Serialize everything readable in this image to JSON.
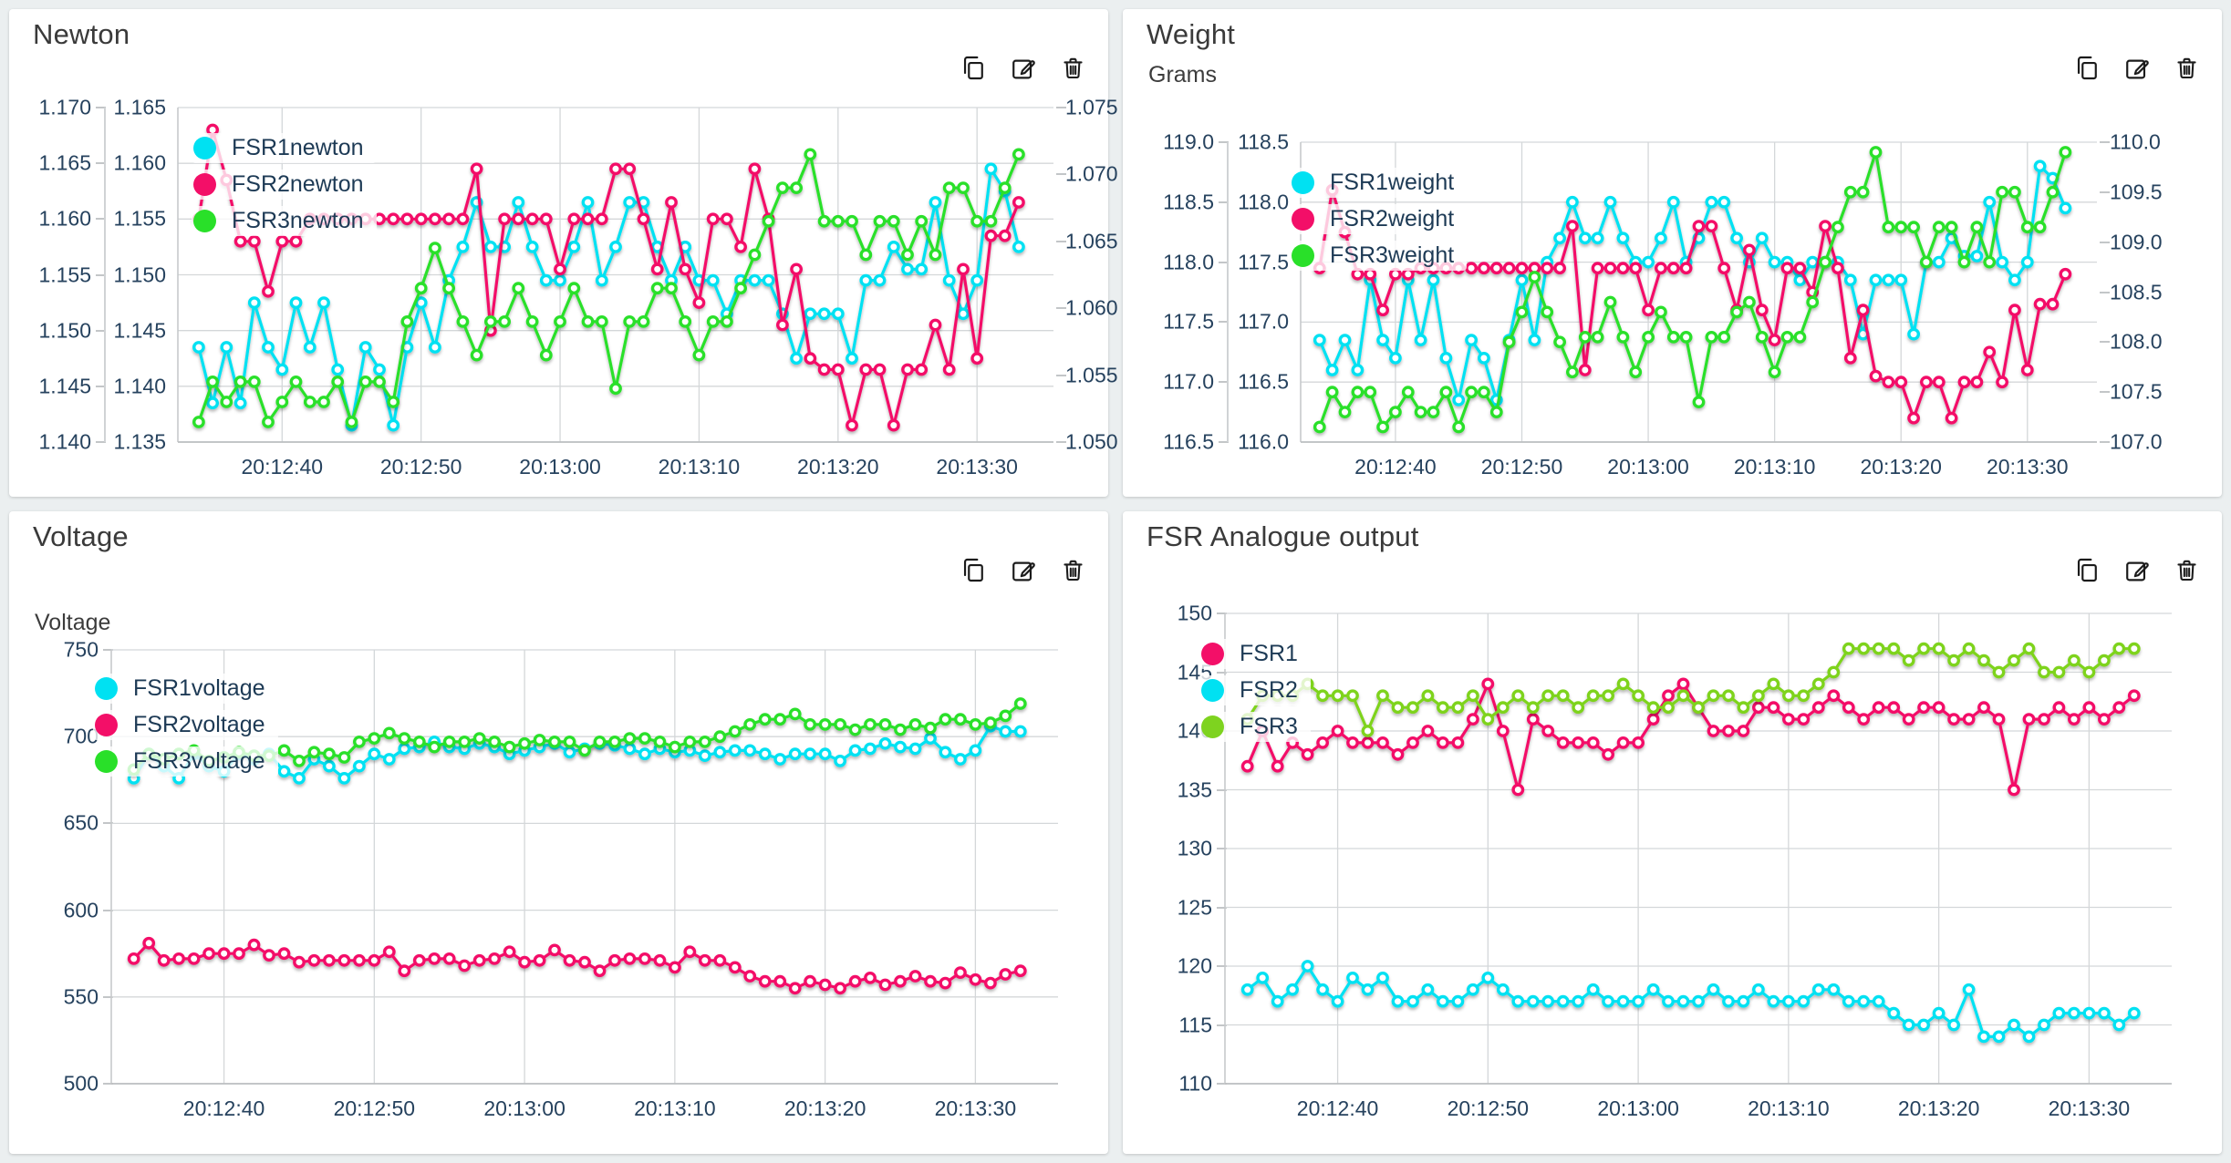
{
  "page": {
    "background": "#ebeff0"
  },
  "colors": {
    "cyan": "#00e1f2",
    "pink": "#f30f68",
    "green": "#29e029",
    "lime": "#7ed31f",
    "grid": "#d4d7d9",
    "tick_text": "#26425e",
    "title_text": "#3a3a3a"
  },
  "icon_names": {
    "copy": "copy-icon",
    "edit": "edit-icon",
    "delete": "trash-icon"
  },
  "chart_data": [
    {
      "id": "newton",
      "type": "line",
      "title": "Newton",
      "y_axis_label": null,
      "legend_position": "top-left",
      "start_time": "20:12:34",
      "interval_s": 1,
      "x_ticks": [
        "20:12:40",
        "20:12:50",
        "20:13:00",
        "20:13:10",
        "20:13:20",
        "20:13:30"
      ],
      "axes": [
        {
          "position": "left-outer",
          "min": 1.14,
          "max": 1.17,
          "ticks": [
            "1.170",
            "1.165",
            "1.160",
            "1.155",
            "1.150",
            "1.145",
            "1.140"
          ]
        },
        {
          "position": "left-inner",
          "min": 1.135,
          "max": 1.165,
          "grid": true,
          "ticks": [
            "1.165",
            "1.160",
            "1.155",
            "1.150",
            "1.145",
            "1.140",
            "1.135"
          ]
        },
        {
          "position": "right",
          "min": 1.05,
          "max": 1.075,
          "ticks": [
            "1.075",
            "1.070",
            "1.065",
            "1.060",
            "1.055",
            "1.050"
          ]
        }
      ],
      "series": [
        {
          "name": "FSR1newton",
          "color": "#00e1f2",
          "axis": 1,
          "values": [
            1.1435,
            1.1385,
            1.1435,
            1.1385,
            1.1475,
            1.1435,
            1.1415,
            1.1475,
            1.1435,
            1.1475,
            1.1415,
            1.1365,
            1.1435,
            1.1415,
            1.1365,
            1.1435,
            1.1475,
            1.1435,
            1.1495,
            1.1525,
            1.1565,
            1.1525,
            1.1525,
            1.1565,
            1.1525,
            1.1495,
            1.1495,
            1.1525,
            1.1565,
            1.1495,
            1.1525,
            1.1565,
            1.1565,
            1.1525,
            1.1495,
            1.1525,
            1.1495,
            1.1495,
            1.1465,
            1.1495,
            1.1495,
            1.1495,
            1.1465,
            1.1425,
            1.1465,
            1.1465,
            1.1465,
            1.1425,
            1.1495,
            1.1495,
            1.1525,
            1.1505,
            1.1505,
            1.1565,
            1.1495,
            1.1465,
            1.1495,
            1.1595,
            1.1575,
            1.1525
          ]
        },
        {
          "name": "FSR2newton",
          "color": "#f30f68",
          "axis": 0,
          "values": [
            1.16,
            1.168,
            1.1635,
            1.158,
            1.158,
            1.1535,
            1.158,
            1.158,
            1.16,
            1.16,
            1.16,
            1.16,
            1.16,
            1.16,
            1.16,
            1.16,
            1.16,
            1.16,
            1.16,
            1.16,
            1.1645,
            1.15,
            1.16,
            1.16,
            1.16,
            1.16,
            1.1555,
            1.16,
            1.16,
            1.16,
            1.1645,
            1.1645,
            1.16,
            1.1555,
            1.1615,
            1.1555,
            1.1525,
            1.16,
            1.16,
            1.1575,
            1.1645,
            1.16,
            1.1505,
            1.1555,
            1.1475,
            1.1465,
            1.1465,
            1.1415,
            1.1465,
            1.1465,
            1.1415,
            1.1465,
            1.1465,
            1.1505,
            1.1465,
            1.1555,
            1.1475,
            1.1585,
            1.1585,
            1.1615
          ]
        },
        {
          "name": "FSR3newton",
          "color": "#29e029",
          "axis": 2,
          "values": [
            1.0515,
            1.0545,
            1.053,
            1.0545,
            1.0545,
            1.0515,
            1.053,
            1.0545,
            1.053,
            1.053,
            1.0545,
            1.0515,
            1.0545,
            1.0545,
            1.053,
            1.059,
            1.0615,
            1.0645,
            1.0615,
            1.059,
            1.0565,
            1.059,
            1.059,
            1.0615,
            1.059,
            1.0565,
            1.059,
            1.0615,
            1.059,
            1.059,
            1.054,
            1.059,
            1.059,
            1.0615,
            1.0615,
            1.059,
            1.0565,
            1.059,
            1.059,
            1.0615,
            1.064,
            1.0665,
            1.069,
            1.069,
            1.0715,
            1.0665,
            1.0665,
            1.0665,
            1.064,
            1.0665,
            1.0665,
            1.064,
            1.0665,
            1.064,
            1.069,
            1.069,
            1.0665,
            1.0665,
            1.069,
            1.0715
          ]
        }
      ]
    },
    {
      "id": "weight",
      "type": "line",
      "title": "Weight",
      "y_axis_label": "Grams",
      "legend_position": "top-left",
      "start_time": "20:12:34",
      "interval_s": 1,
      "x_ticks": [
        "20:12:40",
        "20:12:50",
        "20:13:00",
        "20:13:10",
        "20:13:20",
        "20:13:30"
      ],
      "axes": [
        {
          "position": "left-outer",
          "min": 116.5,
          "max": 119.0,
          "ticks": [
            "119.0",
            "118.5",
            "118.0",
            "117.5",
            "117.0",
            "116.5"
          ]
        },
        {
          "position": "left-inner",
          "min": 116.0,
          "max": 118.5,
          "grid": true,
          "ticks": [
            "118.5",
            "118.0",
            "117.5",
            "117.0",
            "116.5",
            "116.0"
          ]
        },
        {
          "position": "right",
          "min": 107.0,
          "max": 110.0,
          "ticks": [
            "110.0",
            "109.5",
            "109.0",
            "108.5",
            "108.0",
            "107.5",
            "107.0"
          ]
        }
      ],
      "series": [
        {
          "name": "FSR1weight",
          "color": "#00e1f2",
          "axis": 1,
          "values": [
            116.85,
            116.6,
            116.85,
            116.6,
            117.35,
            116.85,
            116.7,
            117.35,
            116.85,
            117.35,
            116.7,
            116.35,
            116.85,
            116.7,
            116.35,
            116.85,
            117.35,
            116.85,
            117.5,
            117.7,
            118.0,
            117.7,
            117.7,
            118.0,
            117.7,
            117.5,
            117.5,
            117.7,
            118.0,
            117.5,
            117.7,
            118.0,
            118.0,
            117.7,
            117.5,
            117.7,
            117.5,
            117.5,
            117.35,
            117.5,
            117.5,
            117.5,
            117.35,
            116.9,
            117.35,
            117.35,
            117.35,
            116.9,
            117.5,
            117.5,
            117.7,
            117.55,
            117.55,
            118.0,
            117.5,
            117.35,
            117.5,
            118.3,
            118.2,
            117.95
          ]
        },
        {
          "name": "FSR2weight",
          "color": "#f30f68",
          "axis": 0,
          "values": [
            117.95,
            118.6,
            118.25,
            117.9,
            117.9,
            117.6,
            117.9,
            117.9,
            117.95,
            117.95,
            117.95,
            117.95,
            117.95,
            117.95,
            117.95,
            117.95,
            117.95,
            117.95,
            117.95,
            117.95,
            118.3,
            117.1,
            117.95,
            117.95,
            117.95,
            117.95,
            117.6,
            117.95,
            117.95,
            117.95,
            118.3,
            118.3,
            117.95,
            117.6,
            118.1,
            117.6,
            117.35,
            117.95,
            117.95,
            117.75,
            118.3,
            117.95,
            117.2,
            117.6,
            117.05,
            117.0,
            117.0,
            116.7,
            117.0,
            117.0,
            116.7,
            117.0,
            117.0,
            117.25,
            117.0,
            117.6,
            117.1,
            117.65,
            117.65,
            117.9
          ]
        },
        {
          "name": "FSR3weight",
          "color": "#29e029",
          "axis": 2,
          "values": [
            107.15,
            107.5,
            107.3,
            107.5,
            107.5,
            107.15,
            107.3,
            107.5,
            107.3,
            107.3,
            107.5,
            107.15,
            107.5,
            107.5,
            107.3,
            108.0,
            108.3,
            108.65,
            108.3,
            108.0,
            107.7,
            108.05,
            108.05,
            108.4,
            108.05,
            107.7,
            108.05,
            108.3,
            108.05,
            108.05,
            107.4,
            108.05,
            108.05,
            108.3,
            108.4,
            108.05,
            107.7,
            108.05,
            108.05,
            108.4,
            108.8,
            109.15,
            109.5,
            109.5,
            109.9,
            109.15,
            109.15,
            109.15,
            108.8,
            109.15,
            109.15,
            108.8,
            109.15,
            108.8,
            109.5,
            109.5,
            109.15,
            109.15,
            109.5,
            109.9
          ]
        }
      ]
    },
    {
      "id": "voltage",
      "type": "line",
      "title": "Voltage",
      "y_axis_label": "Voltage",
      "legend_position": "top-left",
      "start_time": "20:12:34",
      "interval_s": 1,
      "x_ticks": [
        "20:12:40",
        "20:12:50",
        "20:13:00",
        "20:13:10",
        "20:13:20",
        "20:13:30"
      ],
      "axes": [
        {
          "position": "left",
          "min": 500,
          "max": 750,
          "grid": true,
          "ticks": [
            "750",
            "700",
            "650",
            "600",
            "550",
            "500"
          ]
        }
      ],
      "series": [
        {
          "name": "FSR1voltage",
          "color": "#00e1f2",
          "axis": 0,
          "values": [
            676,
            690,
            683,
            676,
            690,
            683,
            680,
            690,
            687,
            690,
            680,
            676,
            687,
            683,
            676,
            683,
            690,
            687,
            693,
            694,
            697,
            694,
            693,
            696,
            694,
            690,
            692,
            694,
            696,
            691,
            693,
            696,
            695,
            693,
            690,
            693,
            691,
            692,
            689,
            691,
            692,
            692,
            690,
            687,
            690,
            690,
            690,
            686,
            692,
            693,
            696,
            694,
            693,
            699,
            691,
            687,
            692,
            706,
            703,
            703
          ]
        },
        {
          "name": "FSR2voltage",
          "color": "#f30f68",
          "axis": 0,
          "values": [
            572,
            581,
            571,
            572,
            572,
            575,
            575,
            575,
            580,
            574,
            575,
            570,
            571,
            571,
            571,
            571,
            571,
            576,
            565,
            571,
            572,
            572,
            568,
            571,
            572,
            576,
            570,
            571,
            577,
            571,
            570,
            565,
            571,
            572,
            572,
            571,
            567,
            576,
            571,
            571,
            567,
            562,
            559,
            559,
            555,
            559,
            557,
            555,
            559,
            561,
            557,
            559,
            562,
            559,
            558,
            564,
            560,
            558,
            563,
            565
          ]
        },
        {
          "name": "FSR3voltage",
          "color": "#29e029",
          "axis": 0,
          "values": [
            681,
            690,
            687,
            690,
            692,
            686,
            688,
            691,
            689,
            689,
            692,
            686,
            691,
            690,
            688,
            697,
            699,
            702,
            699,
            697,
            694,
            697,
            697,
            699,
            697,
            694,
            696,
            698,
            697,
            697,
            692,
            697,
            697,
            699,
            699,
            697,
            694,
            697,
            697,
            700,
            703,
            707,
            710,
            710,
            713,
            707,
            707,
            707,
            704,
            707,
            707,
            704,
            707,
            705,
            710,
            710,
            707,
            708,
            712,
            719
          ]
        }
      ]
    },
    {
      "id": "fsr",
      "type": "line",
      "title": "FSR Analogue output",
      "y_axis_label": null,
      "legend_position": "top-left",
      "start_time": "20:12:34",
      "interval_s": 1,
      "x_ticks": [
        "20:12:40",
        "20:12:50",
        "20:13:00",
        "20:13:10",
        "20:13:20",
        "20:13:30"
      ],
      "axes": [
        {
          "position": "left",
          "min": 110,
          "max": 150,
          "grid": true,
          "ticks": [
            "150",
            "145",
            "140",
            "135",
            "130",
            "125",
            "120",
            "115",
            "110"
          ]
        }
      ],
      "series": [
        {
          "name": "FSR1",
          "color": "#f30f68",
          "axis": 0,
          "values": [
            137,
            140,
            137,
            139,
            138,
            139,
            140,
            139,
            139,
            139,
            138,
            139,
            140,
            139,
            139,
            141,
            144,
            140,
            135,
            141,
            140,
            139,
            139,
            139,
            138,
            139,
            139,
            141,
            143,
            144,
            142,
            140,
            140,
            140,
            142,
            142,
            141,
            141,
            142,
            143,
            142,
            141,
            142,
            142,
            141,
            142,
            142,
            141,
            141,
            142,
            141,
            135,
            141,
            141,
            142,
            141,
            142,
            141,
            142,
            143
          ]
        },
        {
          "name": "FSR2",
          "color": "#00e1f2",
          "axis": 0,
          "values": [
            118,
            119,
            117,
            118,
            120,
            118,
            117,
            119,
            118,
            119,
            117,
            117,
            118,
            117,
            117,
            118,
            119,
            118,
            117,
            117,
            117,
            117,
            117,
            118,
            117,
            117,
            117,
            118,
            117,
            117,
            117,
            118,
            117,
            117,
            118,
            117,
            117,
            117,
            118,
            118,
            117,
            117,
            117,
            116,
            115,
            115,
            116,
            115,
            118,
            114,
            114,
            115,
            114,
            115,
            116,
            116,
            116,
            116,
            115,
            116
          ]
        },
        {
          "name": "FSR3",
          "color": "#7ed31f",
          "axis": 0,
          "values": [
            141,
            143,
            143,
            143,
            144,
            143,
            143,
            143,
            140,
            143,
            142,
            142,
            143,
            142,
            142,
            143,
            141,
            142,
            143,
            142,
            143,
            143,
            142,
            143,
            143,
            144,
            143,
            142,
            142,
            143,
            142,
            143,
            143,
            142,
            143,
            144,
            143,
            143,
            144,
            145,
            147,
            147,
            147,
            147,
            146,
            147,
            147,
            146,
            147,
            146,
            145,
            146,
            147,
            145,
            145,
            146,
            145,
            146,
            147,
            147
          ]
        }
      ]
    }
  ]
}
